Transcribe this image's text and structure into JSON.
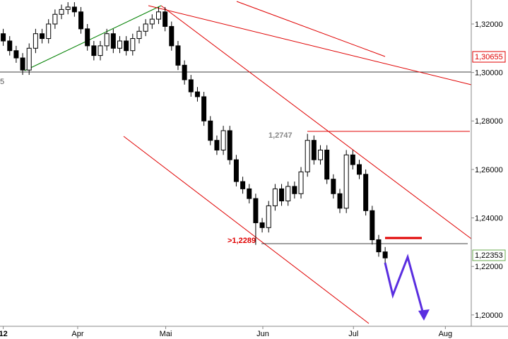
{
  "chart_data": {
    "type": "candlestick",
    "x": [
      0,
      1,
      2,
      3,
      4,
      5,
      6,
      7,
      8,
      9,
      10,
      11,
      12,
      13,
      14,
      15,
      16,
      17,
      18,
      19,
      20,
      21,
      22,
      23,
      24,
      25,
      26,
      27,
      28,
      29,
      30,
      31,
      32,
      33,
      34,
      35,
      36,
      37,
      38,
      39,
      40,
      41,
      42,
      43,
      44,
      45,
      46,
      47,
      48,
      49,
      50,
      51,
      52,
      53,
      54,
      55,
      56,
      57,
      58,
      59
    ],
    "open": [
      1.316,
      1.313,
      1.309,
      1.306,
      1.301,
      1.31,
      1.316,
      1.314,
      1.32,
      1.324,
      1.326,
      1.327,
      1.325,
      1.318,
      1.311,
      1.307,
      1.311,
      1.316,
      1.31,
      1.313,
      1.309,
      1.314,
      1.317,
      1.32,
      1.322,
      1.325,
      1.319,
      1.311,
      1.303,
      1.297,
      1.292,
      1.29,
      1.28,
      1.272,
      1.268,
      1.276,
      1.264,
      1.255,
      1.252,
      1.248,
      1.238,
      1.236,
      1.245,
      1.252,
      1.247,
      1.253,
      1.25,
      1.259,
      1.272,
      1.264,
      1.268,
      1.256,
      1.25,
      1.244,
      1.266,
      1.262,
      1.258,
      1.243,
      1.231,
      1.226
    ],
    "high": [
      1.318,
      1.315,
      1.311,
      1.308,
      1.312,
      1.318,
      1.318,
      1.322,
      1.326,
      1.328,
      1.329,
      1.329,
      1.327,
      1.32,
      1.313,
      1.313,
      1.318,
      1.318,
      1.315,
      1.315,
      1.316,
      1.319,
      1.322,
      1.324,
      1.327,
      1.327,
      1.321,
      1.313,
      1.305,
      1.299,
      1.294,
      1.292,
      1.282,
      1.274,
      1.278,
      1.278,
      1.266,
      1.257,
      1.254,
      1.25,
      1.24,
      1.247,
      1.254,
      1.254,
      1.255,
      1.255,
      1.261,
      1.2747,
      1.274,
      1.27,
      1.27,
      1.258,
      1.252,
      1.268,
      1.268,
      1.264,
      1.26,
      1.245,
      1.233,
      1.228
    ],
    "low": [
      1.311,
      1.307,
      1.304,
      1.299,
      1.299,
      1.308,
      1.312,
      1.312,
      1.318,
      1.322,
      1.324,
      1.323,
      1.316,
      1.309,
      1.305,
      1.305,
      1.309,
      1.308,
      1.308,
      1.307,
      1.307,
      1.312,
      1.315,
      1.318,
      1.32,
      1.317,
      1.309,
      1.301,
      1.295,
      1.29,
      1.288,
      1.278,
      1.27,
      1.266,
      1.266,
      1.262,
      1.253,
      1.25,
      1.246,
      1.2289,
      1.234,
      1.234,
      1.243,
      1.245,
      1.245,
      1.248,
      1.248,
      1.257,
      1.262,
      1.262,
      1.254,
      1.248,
      1.242,
      1.242,
      1.26,
      1.256,
      1.241,
      1.229,
      1.224,
      1.2215
    ],
    "close": [
      1.313,
      1.309,
      1.306,
      1.301,
      1.31,
      1.316,
      1.314,
      1.32,
      1.324,
      1.326,
      1.327,
      1.325,
      1.318,
      1.311,
      1.307,
      1.311,
      1.316,
      1.31,
      1.313,
      1.309,
      1.314,
      1.317,
      1.32,
      1.322,
      1.325,
      1.319,
      1.311,
      1.303,
      1.297,
      1.292,
      1.29,
      1.28,
      1.272,
      1.268,
      1.276,
      1.264,
      1.255,
      1.252,
      1.248,
      1.238,
      1.236,
      1.245,
      1.252,
      1.247,
      1.253,
      1.25,
      1.259,
      1.272,
      1.264,
      1.268,
      1.256,
      1.25,
      1.244,
      1.266,
      1.262,
      1.258,
      1.243,
      1.231,
      1.226,
      1.2235
    ],
    "up_color": "#ffffff",
    "down_color": "#000000",
    "xlim": [
      -0.5,
      72.3
    ],
    "xticks": [
      {
        "value": 0,
        "label": "12"
      },
      {
        "value": 11.5,
        "label": "Apr"
      },
      {
        "value": 25.1,
        "label": "Mai"
      },
      {
        "value": 40.1,
        "label": "Jun"
      },
      {
        "value": 54.1,
        "label": "Jul"
      },
      {
        "value": 68.3,
        "label": "Aug"
      }
    ],
    "ylim": [
      1.1953,
      1.3299
    ],
    "yticks": [
      {
        "value": 1.2,
        "label": "1,20000"
      },
      {
        "value": 1.22,
        "label": "1,22000"
      },
      {
        "value": 1.24,
        "label": "1,24000"
      },
      {
        "value": 1.26,
        "label": "1,26000"
      },
      {
        "value": 1.28,
        "label": "1,28000"
      },
      {
        "value": 1.3,
        "label": "1,30000"
      },
      {
        "value": 1.32,
        "label": "1,32000"
      }
    ],
    "annotations": [
      "1,2747",
      ">1,2289",
      "5"
    ],
    "price_tags": [
      "1,30655",
      "1,22353"
    ]
  }
}
